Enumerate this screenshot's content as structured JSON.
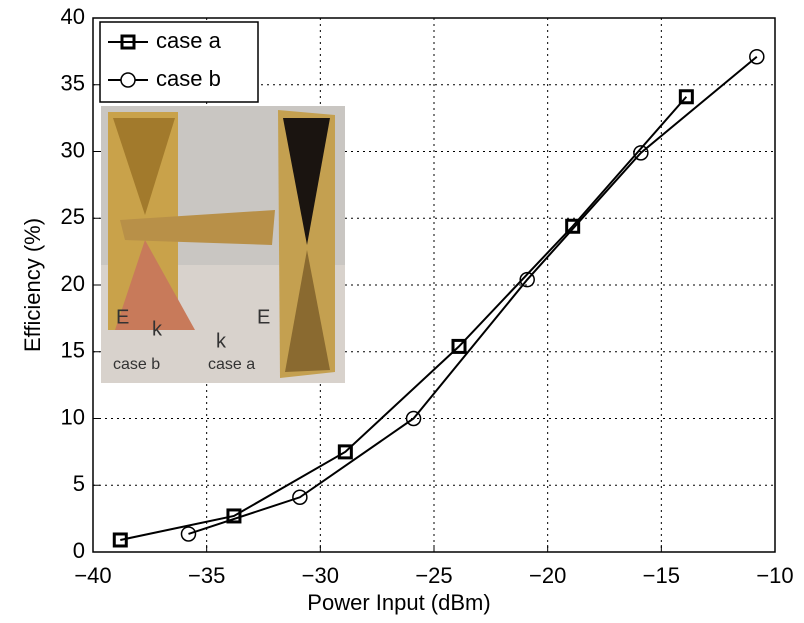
{
  "chart_data": {
    "type": "line",
    "xlabel": "Power Input (dBm)",
    "ylabel": "Efficiency (%)",
    "xlim": [
      -40,
      -10
    ],
    "ylim": [
      0,
      40
    ],
    "xticks": [
      {
        "value": -40,
        "label": "−40"
      },
      {
        "value": -35,
        "label": "−35"
      },
      {
        "value": -30,
        "label": "−30"
      },
      {
        "value": -25,
        "label": "−25"
      },
      {
        "value": -20,
        "label": "−20"
      },
      {
        "value": -15,
        "label": "−15"
      },
      {
        "value": -10,
        "label": "−10"
      }
    ],
    "yticks": [
      0,
      5,
      10,
      15,
      20,
      25,
      30,
      35,
      40
    ],
    "grid": true,
    "legend": "upper left",
    "series": [
      {
        "name": "case a",
        "color": "#000000",
        "marker": "square",
        "x": [
          -38.8,
          -33.8,
          -28.9,
          -23.9,
          -18.9,
          -13.9
        ],
        "values": [
          0.9,
          2.7,
          7.5,
          15.4,
          24.4,
          34.1
        ]
      },
      {
        "name": "case b",
        "color": "#000000",
        "marker": "circle",
        "x": [
          -35.8,
          -30.9,
          -25.9,
          -20.9,
          -15.9,
          -10.8
        ],
        "values": [
          1.35,
          4.1,
          10.0,
          20.4,
          29.9,
          37.1
        ]
      }
    ],
    "inset_labels": [
      "E",
      "k",
      "case b",
      "k",
      "E",
      "case a"
    ]
  }
}
